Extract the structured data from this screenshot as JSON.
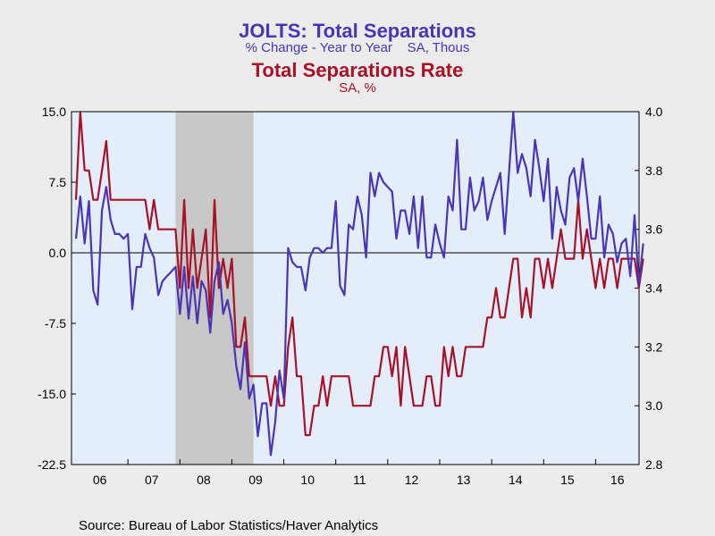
{
  "titles": {
    "series1_title": "JOLTS: Total Separations",
    "series1_subtitle": "% Change - Year to Year    SA, Thous",
    "series2_title": "Total Separations Rate",
    "series2_subtitle": "SA, %"
  },
  "source": "Source:  Bureau of Labor Statistics/Haver Analytics",
  "colors": {
    "series1": "#4a35b5",
    "series2": "#a8112a",
    "recession": "#c8c8c8",
    "plot_bg": "#e4eefa",
    "page_bg": "#ececec"
  },
  "chart_data": {
    "type": "line",
    "x_tick_labels": [
      "06",
      "07",
      "08",
      "09",
      "10",
      "11",
      "12",
      "13",
      "14",
      "15",
      "16"
    ],
    "x_range": [
      "2006-01",
      "2016-10"
    ],
    "left_axis": {
      "ticks": [
        "15.0",
        "7.5",
        "0.0",
        "-7.5",
        "-15.0",
        "-22.5"
      ],
      "ylim": [
        -22.5,
        15.0
      ]
    },
    "right_axis": {
      "ticks": [
        "4.0",
        "3.8",
        "3.6",
        "3.4",
        "3.2",
        "3.0",
        "2.8"
      ],
      "ylim": [
        2.8,
        4.0
      ]
    },
    "recession_shading": [
      "2007-12",
      "2009-06"
    ],
    "zero_line": true,
    "series": [
      {
        "name": "JOLTS: Total Separations",
        "axis": "left",
        "values": [
          1.5,
          6.0,
          1.0,
          5.5,
          -4.0,
          -5.5,
          4.5,
          7.0,
          3.5,
          2.0,
          2.0,
          1.5,
          2.0,
          -6.0,
          -1.5,
          -1.5,
          2.0,
          0.5,
          -0.5,
          -4.5,
          -3.0,
          -2.5,
          -2.0,
          -1.5,
          -6.5,
          -1.5,
          -7.0,
          -2.5,
          -7.5,
          -3.0,
          -4.0,
          -8.5,
          -3.0,
          -1.0,
          -6.5,
          -5.0,
          -7.5,
          -12.0,
          -14.5,
          -9.5,
          -15.5,
          -14.0,
          -19.5,
          -16.0,
          -16.0,
          -21.5,
          -18.0,
          -12.5,
          -15.5,
          0.5,
          -1.0,
          -1.5,
          -1.5,
          -4.0,
          -0.5,
          0.5,
          0.5,
          0.0,
          0.5,
          0.5,
          5.5,
          -3.5,
          -4.5,
          3.0,
          2.5,
          6.0,
          4.0,
          -0.5,
          8.5,
          6.0,
          8.5,
          7.5,
          7.0,
          6.5,
          1.5,
          4.5,
          4.5,
          2.0,
          6.0,
          0.5,
          6.0,
          -0.5,
          -0.5,
          3.0,
          1.0,
          -0.5,
          6.0,
          4.5,
          12.0,
          2.5,
          2.5,
          8.0,
          4.5,
          5.5,
          8.0,
          3.5,
          5.5,
          7.0,
          8.5,
          2.0,
          8.5,
          15.0,
          8.5,
          10.5,
          9.0,
          6.0,
          12.0,
          9.0,
          5.5,
          10.0,
          1.5,
          7.0,
          4.5,
          3.0,
          8.0,
          9.0,
          5.5,
          10.0,
          6.0,
          1.5,
          1.5,
          6.0,
          -0.5,
          3.0,
          2.0,
          -1.0,
          1.0,
          1.5,
          -2.5,
          4.0,
          -3.5,
          1.0
        ]
      },
      {
        "name": "Total Separations Rate",
        "axis": "right",
        "values": [
          3.7,
          4.0,
          3.8,
          3.8,
          3.7,
          3.7,
          3.8,
          3.9,
          3.7,
          3.7,
          3.7,
          3.7,
          3.7,
          3.7,
          3.7,
          3.7,
          3.7,
          3.6,
          3.7,
          3.6,
          3.6,
          3.6,
          3.6,
          3.6,
          3.4,
          3.7,
          3.4,
          3.6,
          3.4,
          3.5,
          3.6,
          3.3,
          3.7,
          3.4,
          3.5,
          3.4,
          3.5,
          3.2,
          3.2,
          3.3,
          3.1,
          3.1,
          3.1,
          3.1,
          3.1,
          3.0,
          3.1,
          3.0,
          3.0,
          3.2,
          3.3,
          3.1,
          3.1,
          2.9,
          2.9,
          3.0,
          3.0,
          3.1,
          3.0,
          3.1,
          3.1,
          3.1,
          3.1,
          3.1,
          3.0,
          3.0,
          3.0,
          3.0,
          3.0,
          3.1,
          3.1,
          3.2,
          3.2,
          3.1,
          3.2,
          3.0,
          3.2,
          3.1,
          3.0,
          3.0,
          3.0,
          3.1,
          3.1,
          3.0,
          3.0,
          3.2,
          3.1,
          3.2,
          3.1,
          3.1,
          3.2,
          3.2,
          3.2,
          3.2,
          3.2,
          3.3,
          3.3,
          3.4,
          3.3,
          3.3,
          3.4,
          3.5,
          3.5,
          3.3,
          3.4,
          3.3,
          3.5,
          3.5,
          3.4,
          3.5,
          3.4,
          3.5,
          3.6,
          3.5,
          3.5,
          3.5,
          3.7,
          3.5,
          3.6,
          3.5,
          3.4,
          3.5,
          3.4,
          3.5,
          3.5,
          3.4,
          3.5,
          3.5,
          3.5,
          3.5,
          3.4,
          3.5
        ]
      }
    ]
  }
}
